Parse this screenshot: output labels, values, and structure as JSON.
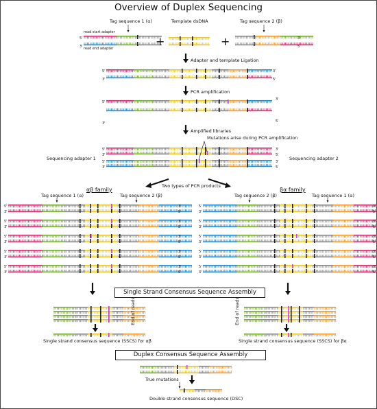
{
  "title": "Overview of Duplex Sequencing",
  "top": {
    "tag_alpha": "Tag sequence 1 (α)",
    "template": "Template dsDNA",
    "tag_beta": "Tag sequence 2 (β)",
    "read_start": "read start adapter",
    "read_end": "read end adapter"
  },
  "steps": {
    "ligation": "Adapter and template Ligation",
    "pcr": "PCR amplification",
    "amplified": "Amplified libraries",
    "mutations_arise": "Mutations arise during PCR amplification",
    "two_types": "Two types of PCR products"
  },
  "adapters": {
    "left": "Sequencing adapter 1",
    "right": "Sequencing adapter 2"
  },
  "families": {
    "ab_title": "αβ family",
    "ba_title": "βα family",
    "ab_tag_left": "Tag sequence 1 (α)",
    "ab_tag_right": "Tag sequence 2 (β)",
    "ba_tag_left": "Tag sequence 2 (β)",
    "ba_tag_right": "Tag sequence 1 (α)"
  },
  "sscs": {
    "box": "Single Strand Consensus Sequence Assembly",
    "end_of_reads": "End of reads",
    "ab_label": "Single strand consensus sequence (SSCS) for αβ",
    "ba_label": "Single strand consensus sequence (SSCS) for βα"
  },
  "dcs": {
    "box": "Duplex Consensus Sequence Assembly",
    "true_mutations": "True mutations",
    "label": "Double strand consensus sequence (DSC)"
  },
  "ends": {
    "five": "5'",
    "three": "3'"
  },
  "colors": {
    "pink": "#c8356e",
    "green": "#79aa3c",
    "gray": "#8a8a8a",
    "yellow": "#e8c832",
    "orange": "#eb9c3c",
    "blue": "#2f88c6",
    "black": "#222222",
    "mutation": "#c64bc6"
  }
}
